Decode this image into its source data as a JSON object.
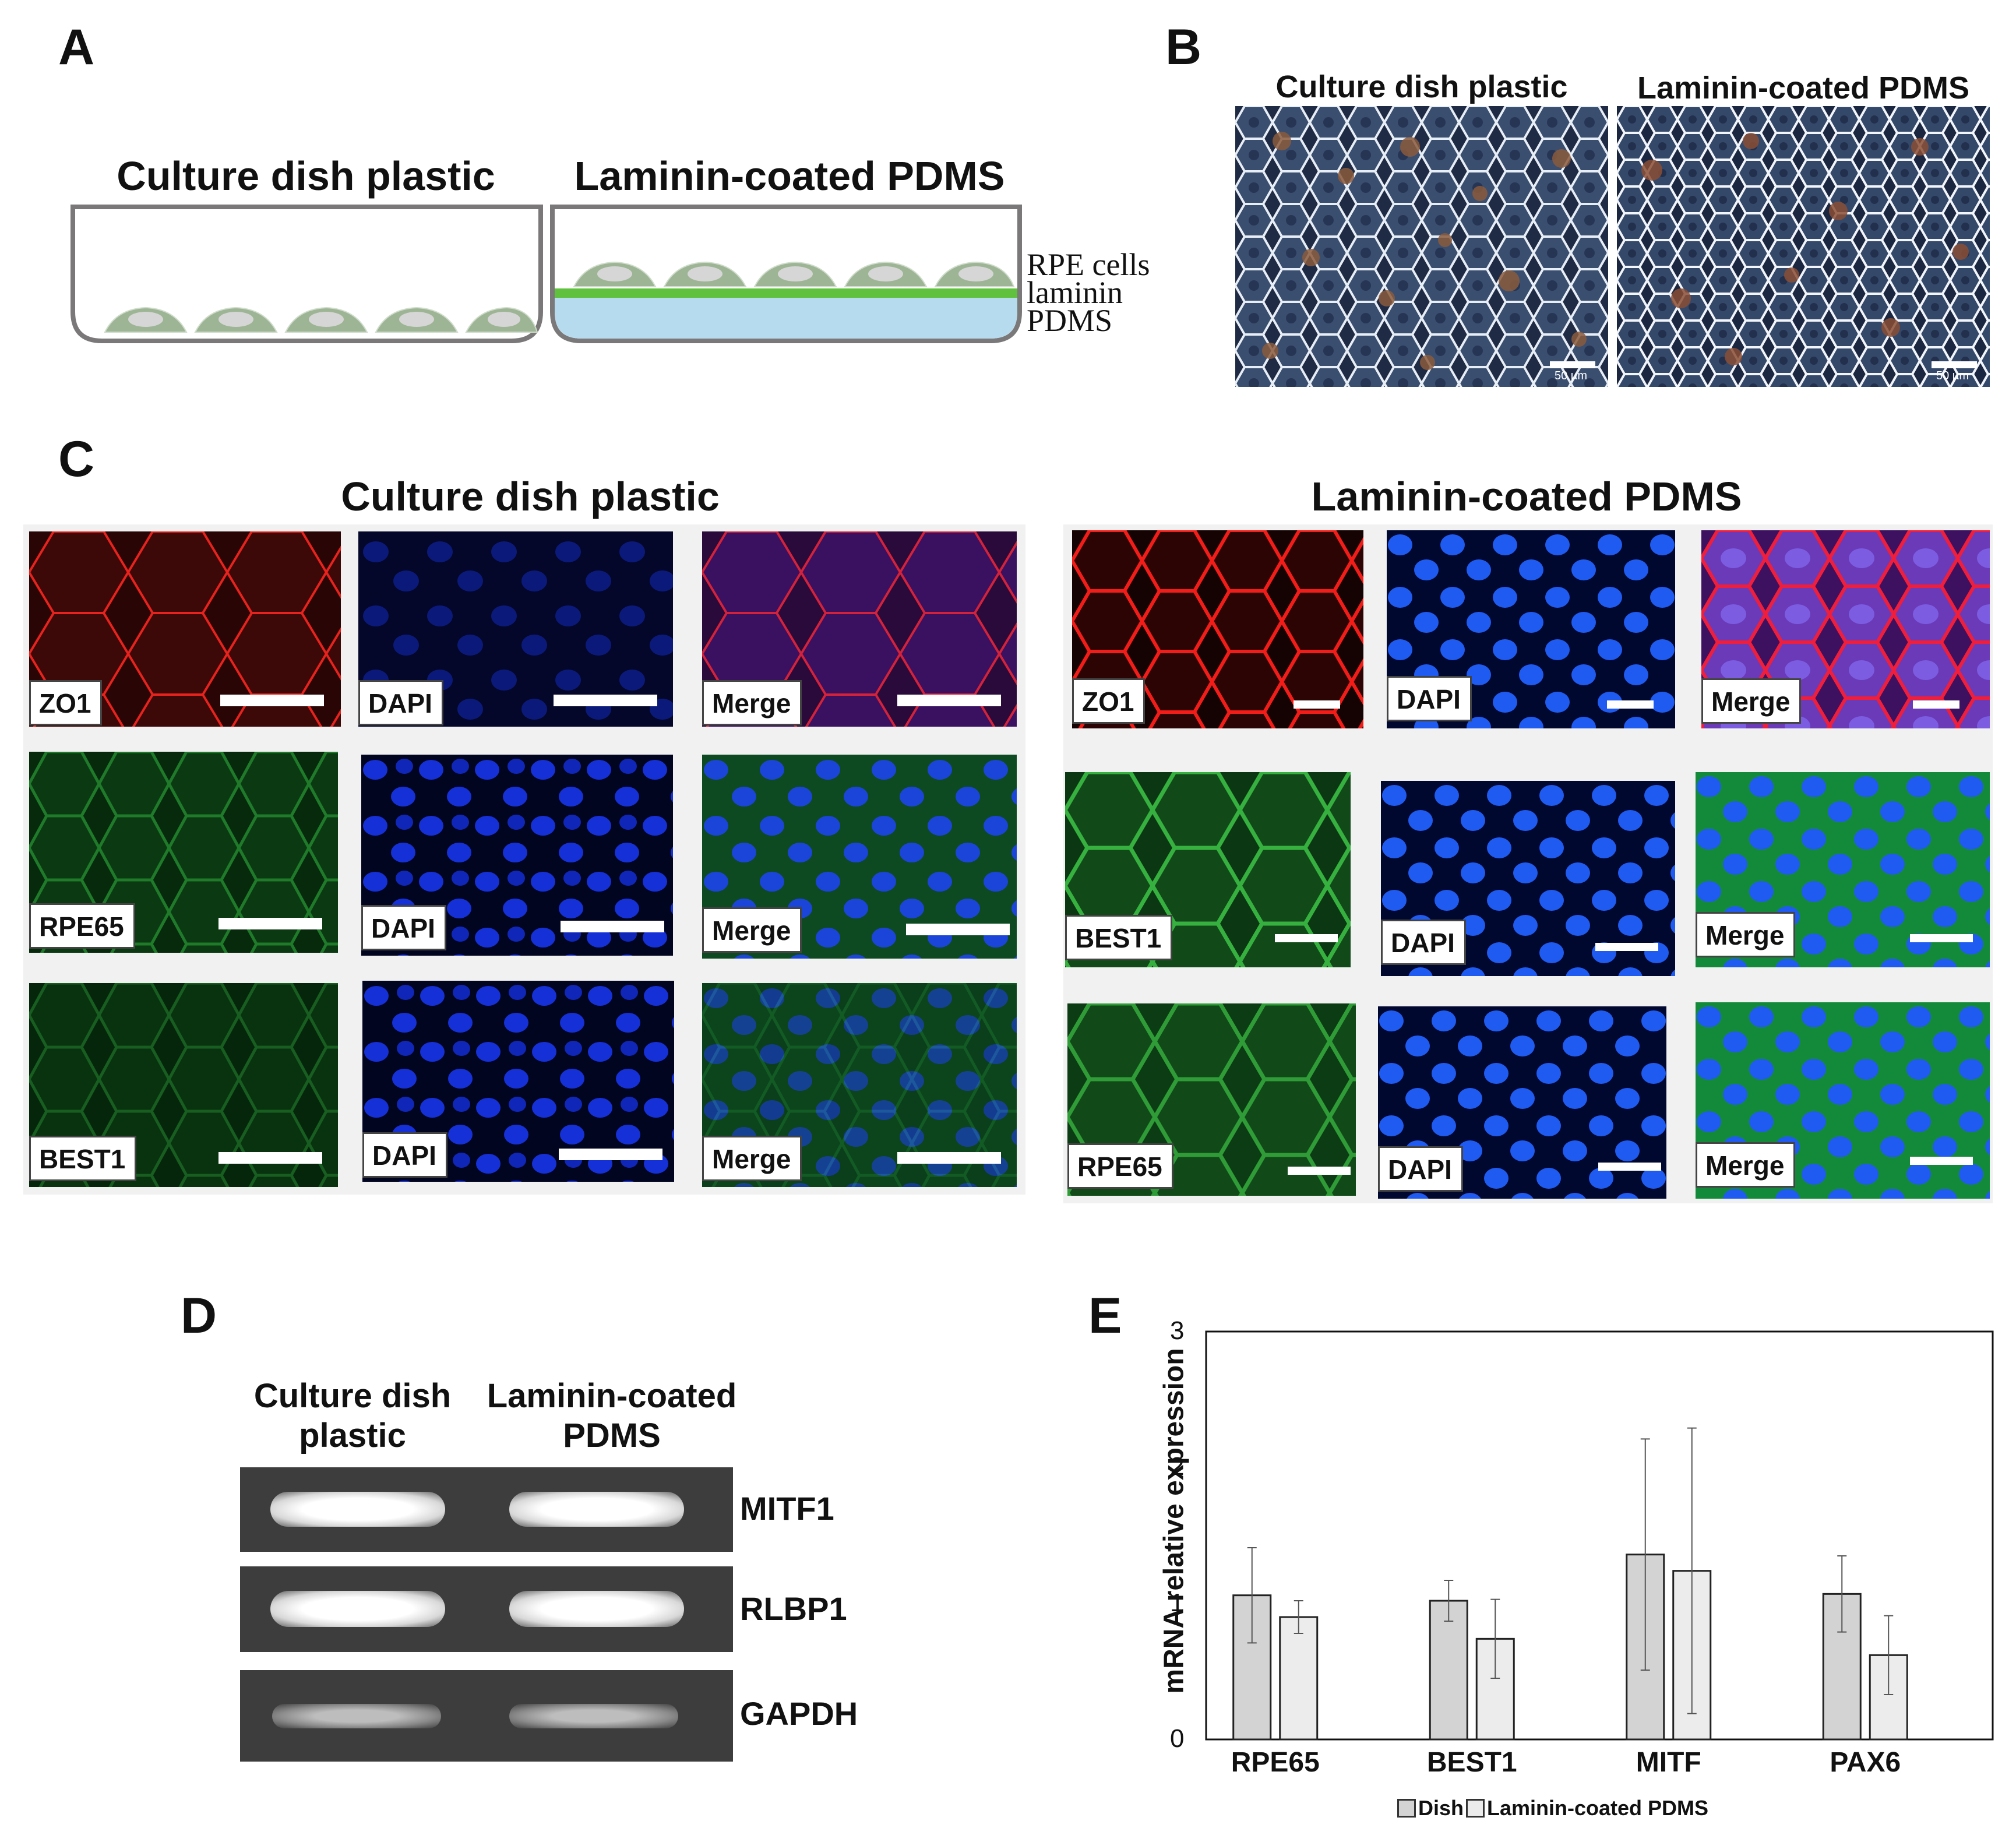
{
  "panels": {
    "A": {
      "label": "A",
      "left_title": "Culture dish plastic",
      "right_title": "Laminin-coated PDMS",
      "layer_labels": [
        "RPE cells",
        "laminin",
        "PDMS"
      ]
    },
    "B": {
      "label": "B",
      "left_title": "Culture dish plastic",
      "right_title": "Laminin-coated PDMS",
      "scale_left": "50 µm",
      "scale_right": "50 µm"
    },
    "C": {
      "label": "C",
      "left_title": "Culture dish plastic",
      "right_title": "Laminin-coated PDMS",
      "left_rows": [
        [
          "ZO1",
          "DAPI",
          "Merge"
        ],
        [
          "RPE65",
          "DAPI",
          "Merge"
        ],
        [
          "BEST1",
          "DAPI",
          "Merge"
        ]
      ],
      "right_rows": [
        [
          "ZO1",
          "DAPI",
          "Merge"
        ],
        [
          "BEST1",
          "DAPI",
          "Merge"
        ],
        [
          "RPE65",
          "DAPI",
          "Merge"
        ]
      ]
    },
    "D": {
      "label": "D",
      "col1": [
        "Culture dish",
        "plastic"
      ],
      "col2": [
        "Laminin-coated",
        "PDMS"
      ],
      "genes": [
        "MITF1",
        "RLBP1",
        "GAPDH"
      ]
    },
    "E": {
      "label": "E"
    }
  },
  "chart_data": {
    "type": "bar",
    "ylabel": "mRNA relative expression",
    "xlabel": "",
    "ylim": [
      0,
      3
    ],
    "yticks": [
      0,
      1,
      2,
      3
    ],
    "categories": [
      "RPE65",
      "BEST1",
      "MITF",
      "PAX6"
    ],
    "series": [
      {
        "name": "Dish",
        "values": [
          1.06,
          1.02,
          1.36,
          1.07
        ],
        "errors": [
          0.35,
          0.15,
          0.85,
          0.28
        ],
        "color": "#d3d3d3"
      },
      {
        "name": "Laminin-coated PDMS",
        "values": [
          0.9,
          0.74,
          1.24,
          0.62
        ],
        "errors": [
          0.12,
          0.29,
          1.05,
          0.29
        ],
        "color": "#ececec"
      }
    ],
    "legend": "bottom",
    "grid": false
  }
}
